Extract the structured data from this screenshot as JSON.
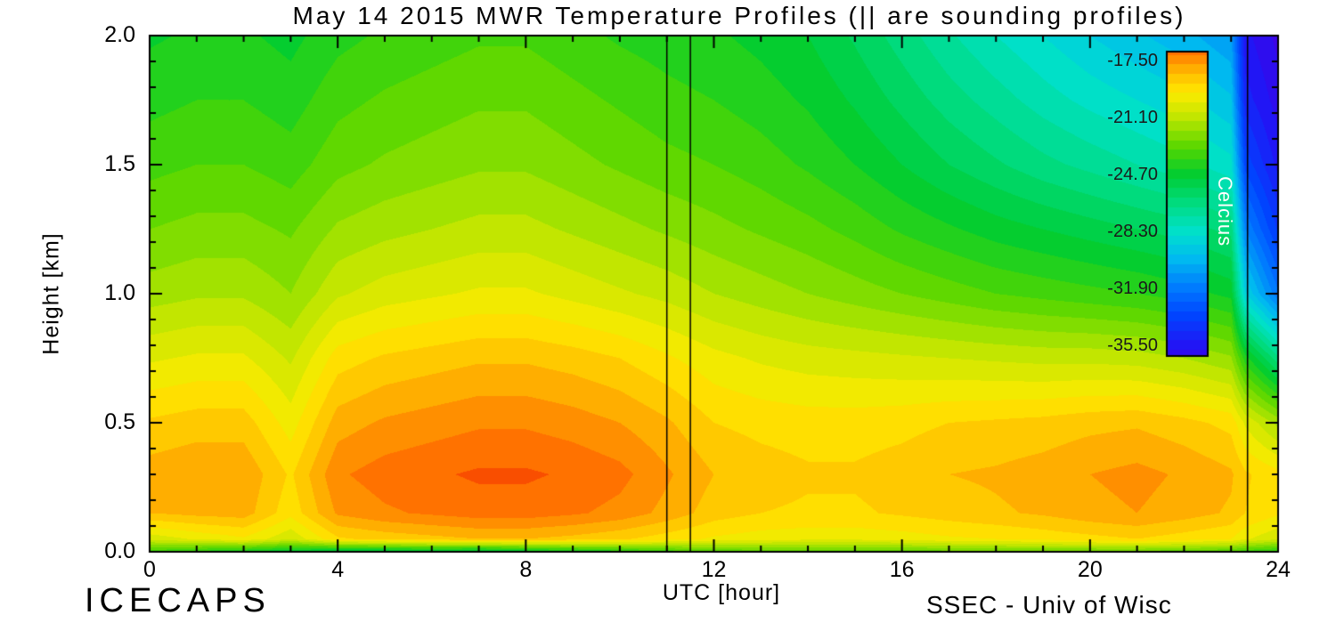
{
  "footer": {
    "left": "ICECAPS",
    "right": "SSEC - Univ of Wisc"
  },
  "chart_data": {
    "type": "heatmap",
    "title": "May 14 2015 MWR Temperature Profiles (|| are sounding profiles)",
    "xlabel": "UTC [hour]",
    "ylabel": "Height [km]",
    "xlim": [
      0,
      24
    ],
    "ylim": [
      0,
      2
    ],
    "x_major_ticks": [
      0,
      4,
      8,
      12,
      16,
      20,
      24
    ],
    "x_minor_step": 1,
    "y_major_ticks": [
      0.0,
      0.5,
      1.0,
      1.5,
      2.0
    ],
    "y_minor_step": 0.1,
    "grid": false,
    "sounding_lines_x": [
      11.0,
      11.5,
      23.35
    ],
    "level_step": 0.6,
    "x": [
      0,
      1,
      2,
      3,
      4,
      5,
      6,
      7,
      8,
      9,
      10,
      11,
      12,
      13,
      14,
      15,
      16,
      17,
      18,
      19,
      20,
      21,
      22,
      23,
      23.3,
      24
    ],
    "y": [
      0.0,
      0.05,
      0.15,
      0.3,
      0.5,
      0.75,
      1.0,
      1.25,
      1.5,
      1.75,
      2.0
    ],
    "values_row_order": "bottom_to_top",
    "values": [
      [
        -23.5,
        -24.0,
        -24.5,
        -25.0,
        -25.5,
        -25.5,
        -25.2,
        -25.5,
        -25.0,
        -24.6,
        -24.2,
        -23.6,
        -23.2,
        -23.0,
        -23.0,
        -23.0,
        -23.0,
        -22.8,
        -22.8,
        -22.8,
        -22.8,
        -22.8,
        -23.0,
        -23.2,
        -23.6,
        -24.0
      ],
      [
        -20.5,
        -20.0,
        -19.6,
        -20.6,
        -19.0,
        -18.7,
        -18.5,
        -18.3,
        -18.3,
        -18.5,
        -18.8,
        -19.2,
        -19.6,
        -19.8,
        -19.9,
        -19.9,
        -19.8,
        -19.6,
        -19.5,
        -19.3,
        -19.1,
        -18.9,
        -19.2,
        -19.5,
        -20.0,
        -20.6
      ],
      [
        -18.3,
        -18.1,
        -18.0,
        -19.3,
        -17.6,
        -17.2,
        -17.0,
        -16.8,
        -16.8,
        -17.0,
        -17.3,
        -17.9,
        -18.6,
        -18.9,
        -19.0,
        -19.0,
        -18.8,
        -18.6,
        -18.4,
        -18.2,
        -17.9,
        -17.7,
        -18.0,
        -18.4,
        -18.9,
        -19.4
      ],
      [
        -18.0,
        -17.8,
        -17.8,
        -19.0,
        -17.2,
        -16.8,
        -16.6,
        -16.4,
        -16.4,
        -16.6,
        -16.9,
        -17.6,
        -18.3,
        -18.6,
        -18.8,
        -18.8,
        -18.6,
        -18.3,
        -18.2,
        -18.0,
        -17.7,
        -17.5,
        -17.8,
        -18.2,
        -18.8,
        -19.3
      ],
      [
        -18.8,
        -18.6,
        -18.6,
        -19.8,
        -18.0,
        -17.6,
        -17.4,
        -17.2,
        -17.2,
        -17.4,
        -17.7,
        -18.2,
        -18.9,
        -19.1,
        -19.2,
        -19.2,
        -19.1,
        -18.9,
        -18.8,
        -18.7,
        -18.5,
        -18.4,
        -18.7,
        -19.1,
        -20.2,
        -21.5
      ],
      [
        -20.2,
        -20.0,
        -20.0,
        -20.8,
        -19.2,
        -18.8,
        -18.6,
        -18.4,
        -18.4,
        -18.6,
        -18.9,
        -19.4,
        -19.9,
        -20.2,
        -20.4,
        -20.5,
        -20.6,
        -20.7,
        -20.8,
        -20.9,
        -20.9,
        -21.0,
        -21.3,
        -21.8,
        -24.0,
        -26.5
      ],
      [
        -21.6,
        -21.4,
        -21.4,
        -21.9,
        -20.8,
        -20.4,
        -20.2,
        -20.0,
        -20.0,
        -20.3,
        -20.6,
        -20.9,
        -21.3,
        -21.6,
        -21.9,
        -22.2,
        -22.5,
        -22.8,
        -23.1,
        -23.3,
        -23.5,
        -23.7,
        -24.0,
        -24.5,
        -29.0,
        -32.0
      ],
      [
        -22.5,
        -22.3,
        -22.3,
        -22.6,
        -21.8,
        -21.5,
        -21.3,
        -21.1,
        -21.1,
        -21.4,
        -21.7,
        -22.0,
        -22.3,
        -22.6,
        -22.9,
        -23.3,
        -23.8,
        -24.2,
        -24.6,
        -24.9,
        -25.2,
        -25.5,
        -25.8,
        -26.3,
        -31.5,
        -34.0
      ],
      [
        -23.3,
        -23.1,
        -23.1,
        -23.4,
        -22.7,
        -22.4,
        -22.2,
        -22.0,
        -22.0,
        -22.3,
        -22.6,
        -22.9,
        -23.1,
        -23.4,
        -23.8,
        -24.3,
        -24.9,
        -25.5,
        -26.0,
        -26.5,
        -26.9,
        -27.3,
        -27.7,
        -28.3,
        -33.5,
        -35.3
      ],
      [
        -23.9,
        -23.7,
        -23.7,
        -24.0,
        -23.3,
        -23.0,
        -22.8,
        -22.6,
        -22.6,
        -22.9,
        -23.2,
        -23.5,
        -23.7,
        -24.0,
        -24.4,
        -25.0,
        -25.7,
        -26.4,
        -27.0,
        -27.6,
        -28.1,
        -28.5,
        -28.9,
        -29.6,
        -34.8,
        -36.0
      ],
      [
        -24.4,
        -24.2,
        -24.2,
        -24.5,
        -23.9,
        -23.6,
        -23.4,
        -23.2,
        -23.2,
        -23.5,
        -23.8,
        -24.0,
        -24.2,
        -24.5,
        -24.9,
        -25.6,
        -26.4,
        -27.2,
        -27.9,
        -28.5,
        -29.1,
        -29.6,
        -30.1,
        -30.8,
        -35.5,
        -36.5
      ]
    ],
    "colorbar": {
      "label": "Celcius",
      "ticks": [
        -17.5,
        -21.1,
        -24.7,
        -28.3,
        -31.9,
        -35.5
      ],
      "tick_labels": [
        "-17.50",
        "-21.10",
        "-24.70",
        "-28.30",
        "-31.90",
        "-35.50"
      ],
      "vmin": -36.1,
      "vmax": -16.9
    },
    "colormap": [
      [
        -37.0,
        [
          70,
          0,
          225
        ]
      ],
      [
        -35.5,
        [
          35,
          20,
          245
        ]
      ],
      [
        -33.5,
        [
          0,
          70,
          255
        ]
      ],
      [
        -31.9,
        [
          0,
          120,
          255
        ]
      ],
      [
        -30.0,
        [
          0,
          185,
          240
        ]
      ],
      [
        -28.3,
        [
          0,
          225,
          205
        ]
      ],
      [
        -26.5,
        [
          0,
          220,
          130
        ]
      ],
      [
        -24.7,
        [
          0,
          205,
          50
        ]
      ],
      [
        -23.0,
        [
          85,
          215,
          0
        ]
      ],
      [
        -21.1,
        [
          190,
          230,
          0
        ]
      ],
      [
        -19.5,
        [
          255,
          235,
          0
        ]
      ],
      [
        -18.3,
        [
          255,
          190,
          0
        ]
      ],
      [
        -17.5,
        [
          255,
          148,
          0
        ]
      ],
      [
        -16.5,
        [
          255,
          100,
          0
        ]
      ],
      [
        -16.0,
        [
          245,
          65,
          0
        ]
      ]
    ]
  }
}
